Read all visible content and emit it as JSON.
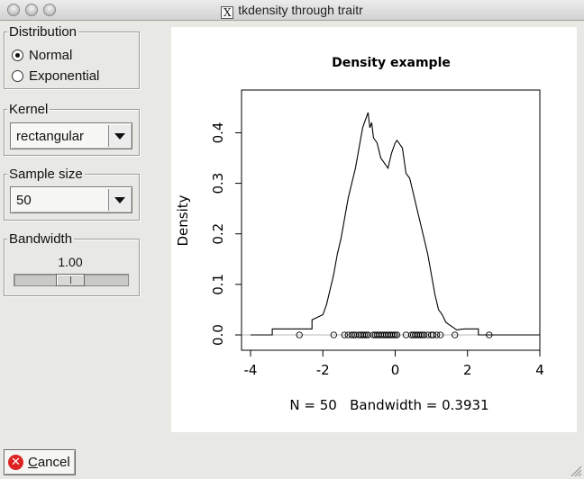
{
  "window": {
    "title": "tkdensity through traitr",
    "title_icon": "X"
  },
  "distribution": {
    "legend": "Distribution",
    "options": [
      {
        "label": "Normal",
        "selected": true
      },
      {
        "label": "Exponential",
        "selected": false
      }
    ]
  },
  "kernel": {
    "legend": "Kernel",
    "value": "rectangular"
  },
  "sample_size": {
    "legend": "Sample size",
    "value": "50"
  },
  "bandwidth": {
    "legend": "Bandwidth",
    "value_label": "1.00",
    "slider_fraction": 0.42
  },
  "cancel_button": {
    "label_underlined": "C",
    "label_rest": "ancel"
  },
  "colors": {
    "window_bg": "#e8e8e4",
    "plot_bg": "#ffffff",
    "cancel_icon": "#dd2222"
  },
  "chart_data": {
    "type": "line",
    "title": "Density example",
    "xlabel": "N = 50   Bandwidth = 0.3931",
    "ylabel": "Density",
    "xlim": [
      -4,
      4
    ],
    "ylim": [
      0,
      0.44
    ],
    "x_ticks": [
      -4,
      -2,
      0,
      2,
      4
    ],
    "y_ticks": [
      0.0,
      0.1,
      0.2,
      0.3,
      0.4
    ],
    "x_tick_labels": [
      "-4",
      "-2",
      "0",
      "2",
      "4"
    ],
    "y_tick_labels": [
      "0.0",
      "0.1",
      "0.2",
      "0.3",
      "0.4"
    ],
    "grid": false,
    "series": [
      {
        "x": [
          -4.0,
          -3.4,
          -3.4,
          -2.3,
          -2.3,
          -2.0,
          -1.9,
          -1.8,
          -1.7,
          -1.6,
          -1.5,
          -1.4,
          -1.3,
          -1.2,
          -1.1,
          -1.0,
          -0.9,
          -0.8,
          -0.75,
          -0.7,
          -0.65,
          -0.6,
          -0.5,
          -0.4,
          -0.3,
          -0.2,
          -0.1,
          0.0,
          0.05,
          0.1,
          0.2,
          0.3,
          0.4,
          0.5,
          0.6,
          0.7,
          0.8,
          0.9,
          1.0,
          1.1,
          1.2,
          1.3,
          1.4,
          1.5,
          1.6,
          1.7,
          1.9,
          2.3,
          2.3,
          3.2,
          3.2,
          4.0
        ],
        "y": [
          0.0,
          0.0,
          0.012,
          0.012,
          0.03,
          0.04,
          0.06,
          0.09,
          0.12,
          0.16,
          0.19,
          0.23,
          0.27,
          0.3,
          0.33,
          0.37,
          0.41,
          0.43,
          0.44,
          0.41,
          0.42,
          0.39,
          0.38,
          0.35,
          0.34,
          0.33,
          0.36,
          0.38,
          0.385,
          0.38,
          0.37,
          0.32,
          0.31,
          0.28,
          0.25,
          0.22,
          0.19,
          0.16,
          0.12,
          0.08,
          0.05,
          0.04,
          0.025,
          0.02,
          0.015,
          0.01,
          0.012,
          0.012,
          0.0,
          0.0,
          0.0,
          0.0
        ]
      }
    ],
    "rug": [
      -2.65,
      -1.7,
      -1.4,
      -1.3,
      -1.2,
      -1.15,
      -1.1,
      -1.0,
      -0.95,
      -0.9,
      -0.85,
      -0.8,
      -0.75,
      -0.6,
      -0.55,
      -0.5,
      -0.45,
      -0.4,
      -0.35,
      -0.3,
      -0.25,
      -0.2,
      -0.15,
      -0.1,
      -0.05,
      0.0,
      0.05,
      0.3,
      0.45,
      0.5,
      0.55,
      0.6,
      0.65,
      0.7,
      0.75,
      0.8,
      0.9,
      1.0,
      1.05,
      1.15,
      1.25,
      1.65,
      2.6
    ]
  }
}
